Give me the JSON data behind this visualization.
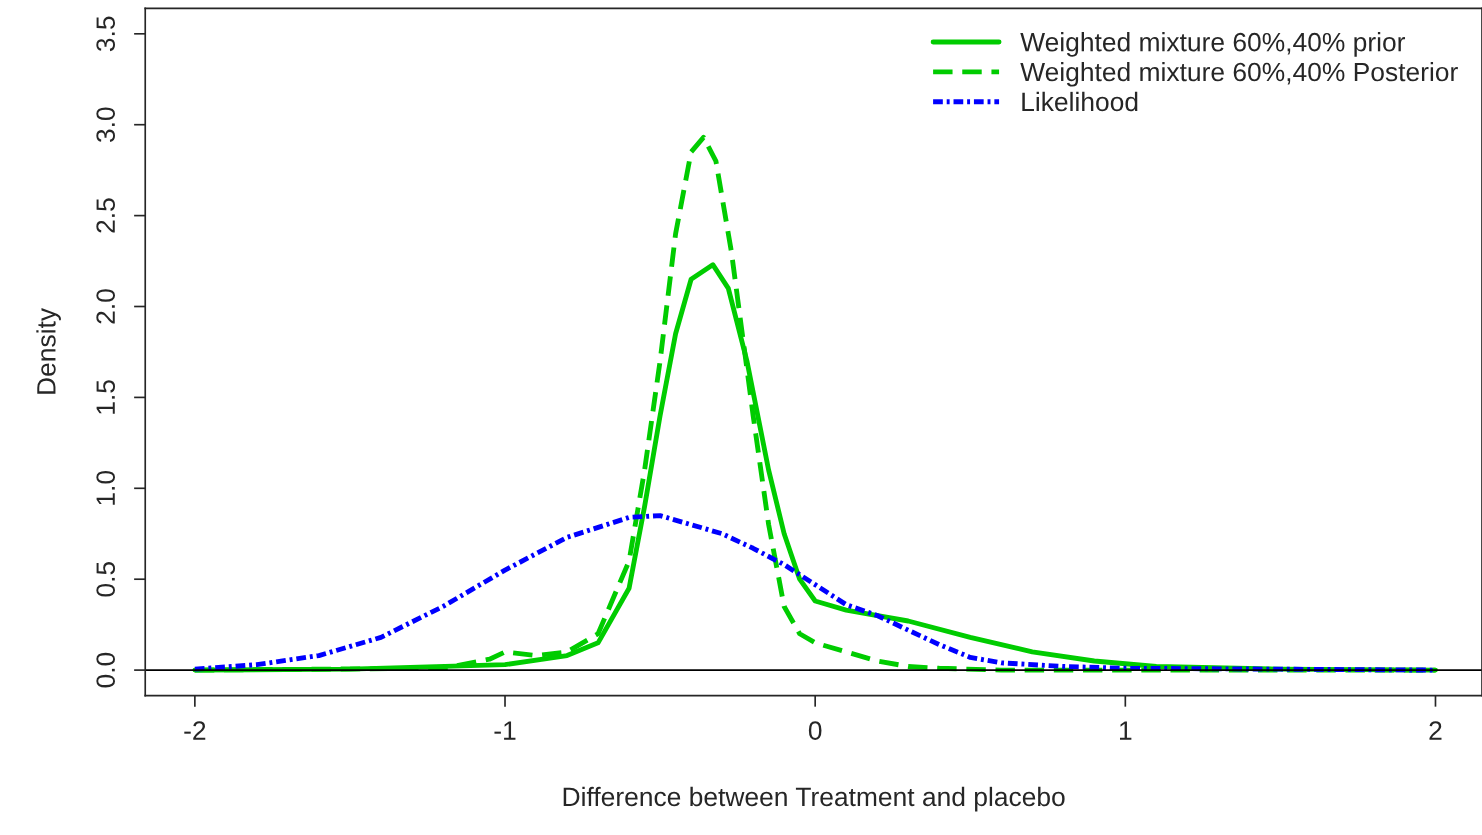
{
  "chart_data": {
    "type": "line",
    "xlabel": "Difference between Treatment and placebo",
    "ylabel": "Density",
    "xlim": [
      -2.16,
      2.15
    ],
    "xticks": [
      -2,
      -1,
      0,
      1,
      2
    ],
    "ylim": [
      -0.14,
      3.64
    ],
    "yticks": [
      {
        "value": 0,
        "label": "0.0"
      },
      {
        "value": 0.5,
        "label": "0.5"
      },
      {
        "value": 1,
        "label": "1.0"
      },
      {
        "value": 1.5,
        "label": "1.5"
      },
      {
        "value": 2,
        "label": "2.0"
      },
      {
        "value": 2.5,
        "label": "2.5"
      },
      {
        "value": 3,
        "label": "3.0"
      },
      {
        "value": 3.5,
        "label": "3.5"
      }
    ],
    "grid": false,
    "legend": "top right",
    "ref_lines": [
      {
        "axis": "y",
        "value": 0,
        "color": "#000000",
        "line_style": "solid"
      }
    ],
    "series": [
      {
        "name": "Weighted mixture 60%,40% prior",
        "color": "#00cc00",
        "line_style": "solid",
        "x": [
          -2,
          -1.5,
          -1.0,
          -0.8,
          -0.7,
          -0.6,
          -0.55,
          -0.5,
          -0.45,
          -0.4,
          -0.33,
          -0.28,
          -0.22,
          -0.15,
          -0.1,
          -0.05,
          0,
          0.1,
          0.3,
          0.5,
          0.7,
          0.9,
          1.1,
          1.5,
          2
        ],
        "values": [
          0,
          0.005,
          0.03,
          0.08,
          0.15,
          0.45,
          0.9,
          1.4,
          1.85,
          2.15,
          2.23,
          2.1,
          1.7,
          1.1,
          0.75,
          0.5,
          0.38,
          0.33,
          0.27,
          0.18,
          0.1,
          0.05,
          0.02,
          0.005,
          0
        ]
      },
      {
        "name": "Weighted mixture 60%,40% Posterior",
        "color": "#00cc00",
        "line_style": "dashed",
        "x": [
          -2,
          -1.2,
          -1.05,
          -1.0,
          -0.9,
          -0.8,
          -0.7,
          -0.6,
          -0.55,
          -0.5,
          -0.45,
          -0.4,
          -0.36,
          -0.32,
          -0.27,
          -0.2,
          -0.15,
          -0.1,
          -0.05,
          0,
          0.1,
          0.2,
          0.3,
          0.4,
          0.6,
          2
        ],
        "values": [
          0,
          0.01,
          0.06,
          0.1,
          0.08,
          0.1,
          0.2,
          0.6,
          1.1,
          1.7,
          2.4,
          2.85,
          2.93,
          2.8,
          2.3,
          1.4,
          0.8,
          0.35,
          0.2,
          0.15,
          0.1,
          0.05,
          0.02,
          0.01,
          0,
          0
        ]
      },
      {
        "name": "Likelihood",
        "color": "#0000ff",
        "line_style": "dashdot",
        "x": [
          -2,
          -1.8,
          -1.6,
          -1.4,
          -1.2,
          -1.0,
          -0.8,
          -0.6,
          -0.5,
          -0.4,
          -0.3,
          -0.2,
          -0.1,
          0,
          0.1,
          0.2,
          0.3,
          0.4,
          0.5,
          0.6,
          0.8,
          1.0,
          1.5,
          2
        ],
        "values": [
          0.005,
          0.03,
          0.08,
          0.18,
          0.35,
          0.55,
          0.73,
          0.84,
          0.85,
          0.8,
          0.75,
          0.67,
          0.58,
          0.47,
          0.36,
          0.3,
          0.22,
          0.14,
          0.07,
          0.04,
          0.02,
          0.01,
          0.005,
          0
        ]
      }
    ]
  }
}
